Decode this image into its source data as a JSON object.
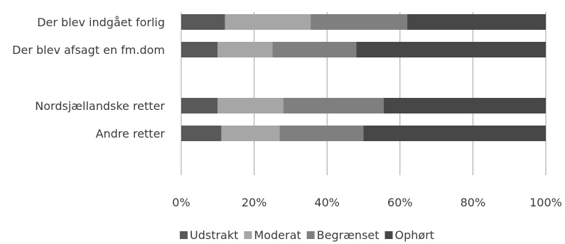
{
  "chart_data": {
    "type": "bar",
    "orientation": "horizontal",
    "stacked": "percent",
    "categories": [
      "Der blev indgået forlig",
      "Der blev afsagt en fm.dom",
      "",
      "Nordsjællandske retter",
      "Andre retter"
    ],
    "series": [
      {
        "name": "Udstrakt",
        "color": "#595959",
        "values": [
          12,
          10,
          null,
          10,
          11
        ]
      },
      {
        "name": "Moderat",
        "color": "#a6a6a6",
        "values": [
          23.5,
          15,
          null,
          18,
          16
        ]
      },
      {
        "name": "Begrænset",
        "color": "#7f7f7f",
        "values": [
          26.5,
          23,
          null,
          27.5,
          23
        ]
      },
      {
        "name": "Ophørt",
        "color": "#474747",
        "values": [
          38,
          52,
          null,
          44.5,
          50
        ]
      }
    ],
    "x_ticks": [
      "0%",
      "20%",
      "40%",
      "60%",
      "80%",
      "100%"
    ],
    "xlim": [
      0,
      100
    ],
    "grid": "vertical",
    "legend_position": "bottom"
  }
}
